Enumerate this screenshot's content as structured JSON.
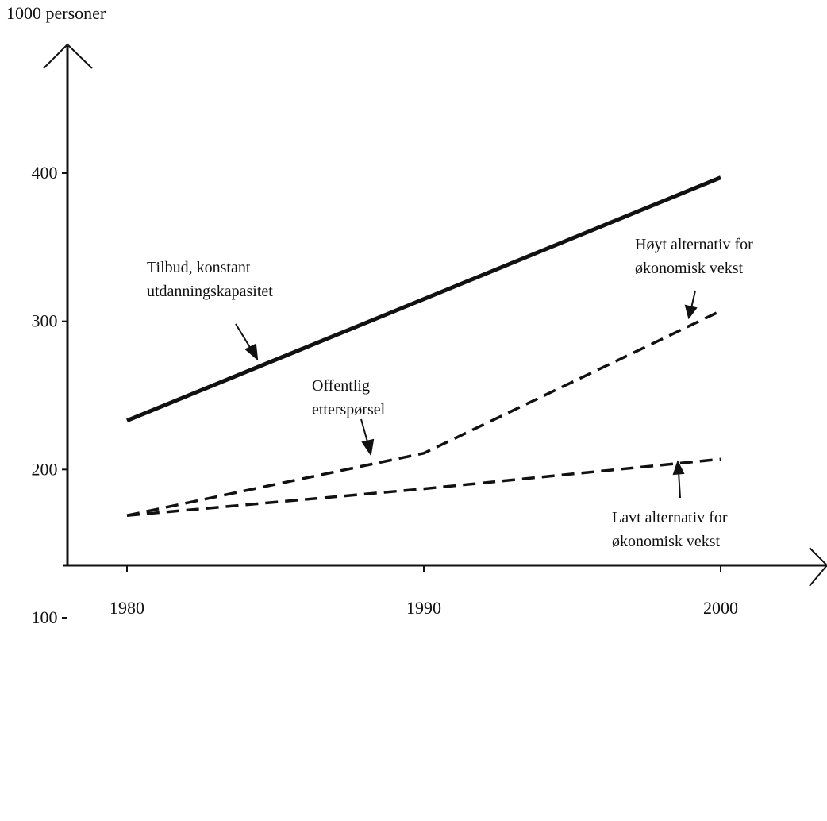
{
  "chart_data": {
    "type": "line",
    "title": "",
    "ylabel": "1000 personer",
    "xlabel": "",
    "x_ticks": [
      1980,
      1990,
      2000
    ],
    "y_ticks": [
      100,
      200,
      300,
      400
    ],
    "xlim": [
      1978,
      2003
    ],
    "ylim": [
      0,
      500
    ],
    "grid": false,
    "series": [
      {
        "name": "Tilbud, konstant utdanningskapasitet",
        "style": "solid",
        "points": [
          [
            1980,
            233
          ],
          [
            2000,
            397
          ]
        ]
      },
      {
        "name": "Offentlig etterspørsel / Høyt alternativ for økonomisk vekst",
        "style": "dashed",
        "points": [
          [
            1980,
            169
          ],
          [
            1990,
            211
          ],
          [
            2000,
            307
          ]
        ]
      },
      {
        "name": "Lavt alternativ for økonomisk vekst",
        "style": "dashed",
        "points": [
          [
            1980,
            169
          ],
          [
            1990,
            187
          ],
          [
            2000,
            207
          ]
        ]
      }
    ],
    "annotations": {
      "tilbud": [
        "Tilbud, konstant",
        "utdanningskapasitet"
      ],
      "offentlig": [
        "Offentlig",
        "etterspørsel"
      ],
      "hoyt": [
        "Høyt alternativ for",
        "økonomisk vekst"
      ],
      "lavt": [
        "Lavt alternativ for",
        "økonomisk vekst"
      ]
    },
    "colors": {
      "line": "#111111",
      "background": "#ffffff"
    }
  }
}
